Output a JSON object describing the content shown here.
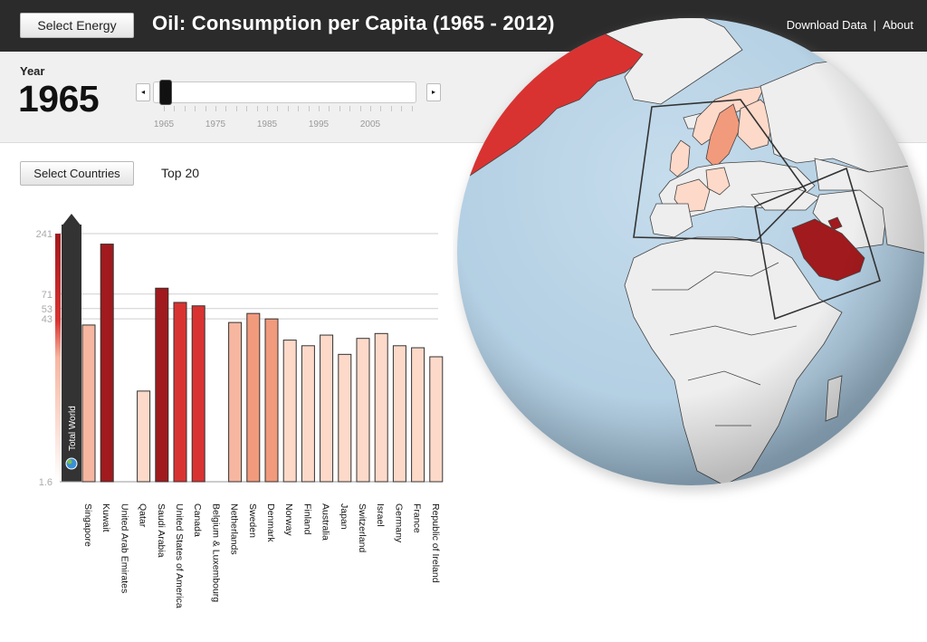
{
  "header": {
    "select_energy_label": "Select Energy",
    "title": "Oil: Consumption per Capita (1965 - 2012)",
    "download_label": "Download Data",
    "separator": "|",
    "about_label": "About"
  },
  "year_panel": {
    "label": "Year",
    "value": "1965",
    "prev_icon": "◂",
    "next_icon": "▸",
    "tick_labels": [
      "1965",
      "1975",
      "1985",
      "1995",
      "2005"
    ]
  },
  "countries": {
    "select_label": "Select Countries",
    "top_label": "Top 20",
    "total_world_label": "Total World"
  },
  "chart_data": {
    "type": "bar",
    "scale": "log",
    "y_tick_labels": [
      "241",
      "71",
      "53",
      "43",
      "1.6"
    ],
    "y_ticks": [
      241,
      71,
      53,
      43,
      1.6
    ],
    "ylim": [
      1.6,
      241
    ],
    "categories": [
      "Singapore",
      "Kuwait",
      "United Arab Emirates",
      "Qatar",
      "Saudi Arabia",
      "United States of America",
      "Canada",
      "Belgium & Luxembourg",
      "Netherlands",
      "Sweden",
      "Denmark",
      "Norway",
      "Finland",
      "Australia",
      "Japan",
      "Switzerland",
      "Israel",
      "Germany",
      "France",
      "Republic of Ireland"
    ],
    "values": [
      38,
      195,
      1.6,
      10,
      80,
      60,
      56,
      1.6,
      40,
      48,
      43,
      28,
      25,
      31,
      21,
      29,
      32,
      25,
      24,
      20
    ],
    "colors": [
      "#f7b6a0",
      "#a11a1d",
      "#ffffff",
      "#fdd9c9",
      "#a11a1d",
      "#d93331",
      "#d93331",
      "#ffffff",
      "#f7b6a0",
      "#f29a7c",
      "#f29a7c",
      "#fdd9c9",
      "#fdd9c9",
      "#fdd9c9",
      "#fdd9c9",
      "#fdd9c9",
      "#fdd9c9",
      "#fdd9c9",
      "#fdd9c9",
      "#fdd9c9"
    ]
  },
  "icons": {
    "globe": "globe-icon",
    "prev": "caret-left-icon",
    "next": "caret-right-icon"
  },
  "colors": {
    "header_bg": "#2b2b2b",
    "panel_bg": "#f0f0f0",
    "ocean": "#b8d2e5",
    "land": "#eeeeee",
    "dark_red": "#a11a1d",
    "red": "#d93331",
    "light_red": "#fdd9c9"
  }
}
